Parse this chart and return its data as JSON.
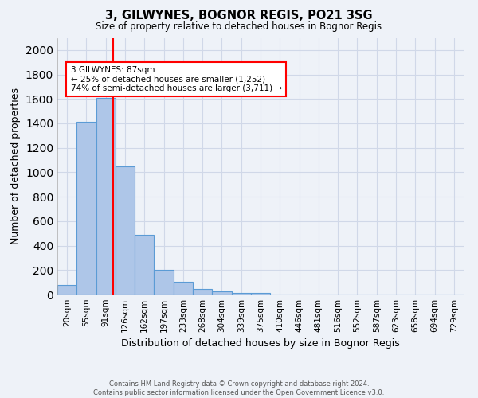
{
  "title": "3, GILWYNES, BOGNOR REGIS, PO21 3SG",
  "subtitle": "Size of property relative to detached houses in Bognor Regis",
  "xlabel": "Distribution of detached houses by size in Bognor Regis",
  "ylabel": "Number of detached properties",
  "footer_line1": "Contains HM Land Registry data © Crown copyright and database right 2024.",
  "footer_line2": "Contains public sector information licensed under the Open Government Licence v3.0.",
  "bin_labels": [
    "20sqm",
    "55sqm",
    "91sqm",
    "126sqm",
    "162sqm",
    "197sqm",
    "233sqm",
    "268sqm",
    "304sqm",
    "339sqm",
    "375sqm",
    "410sqm",
    "446sqm",
    "481sqm",
    "516sqm",
    "552sqm",
    "587sqm",
    "623sqm",
    "658sqm",
    "694sqm",
    "729sqm"
  ],
  "bar_heights": [
    80,
    1415,
    1610,
    1050,
    490,
    205,
    105,
    45,
    25,
    15,
    10,
    0,
    0,
    0,
    0,
    0,
    0,
    0,
    0,
    0,
    0
  ],
  "bar_color": "#aec6e8",
  "bar_edge_color": "#5b9bd5",
  "grid_color": "#d0d8e8",
  "background_color": "#eef2f8",
  "red_line_color": "red",
  "annotation_text": "3 GILWYNES: 87sqm\n← 25% of detached houses are smaller (1,252)\n74% of semi-detached houses are larger (3,711) →",
  "annotation_box_color": "white",
  "annotation_box_edge_color": "red",
  "ylim": [
    0,
    2100
  ],
  "yticks": [
    0,
    200,
    400,
    600,
    800,
    1000,
    1200,
    1400,
    1600,
    1800,
    2000
  ]
}
